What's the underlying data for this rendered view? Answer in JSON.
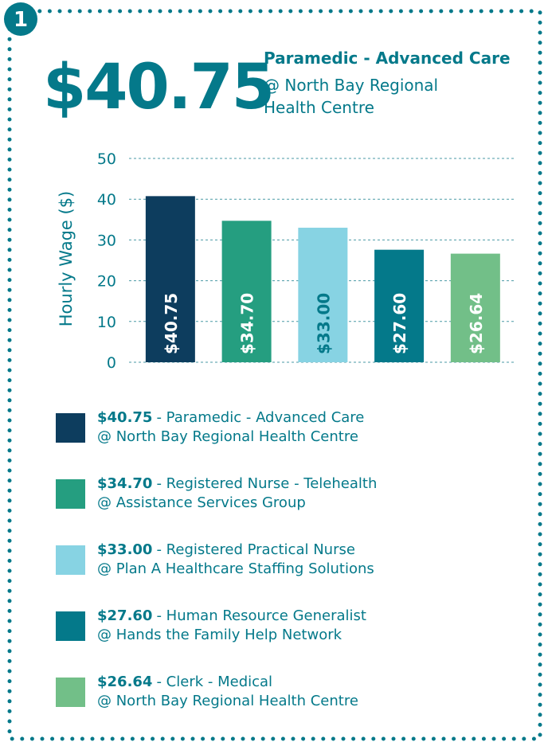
{
  "chart_data": {
    "type": "bar",
    "badge": "1",
    "headline": {
      "amount": "$40.75",
      "title": "Paramedic - Advanced Care",
      "subtitle": [
        "@ North Bay Regional",
        "Health Centre"
      ]
    },
    "ylabel": "Hourly Wage ($)",
    "values": [
      40.75,
      34.7,
      33.0,
      27.6,
      26.64
    ],
    "value_labels": [
      "$40.75",
      "$34.70",
      "$33.00",
      "$27.60",
      "$26.64"
    ],
    "colors": [
      "#0d3d5e",
      "#259e80",
      "#87d3e3",
      "#04798a",
      "#72bf88"
    ],
    "value_label_colors": [
      "#ffffff",
      "#ffffff",
      "#04798a",
      "#ffffff",
      "#ffffff"
    ],
    "ylim": [
      0,
      50
    ],
    "yticks": [
      0,
      10,
      20,
      30,
      40,
      50
    ],
    "grid": true,
    "legend": [
      {
        "amount": "$40.75",
        "title": "- Paramedic - Advanced Care",
        "employer": "@ North Bay Regional Health Centre"
      },
      {
        "amount": "$34.70",
        "title": "- Registered Nurse - Telehealth",
        "employer": "@ Assistance Services Group"
      },
      {
        "amount": "$33.00",
        "title": "- Registered Practical Nurse",
        "employer": "@ Plan A Healthcare Staffing Solutions"
      },
      {
        "amount": "$27.60",
        "title": "- Human Resource Generalist",
        "employer": "@ Hands the Family Help Network"
      },
      {
        "amount": "$26.64",
        "title": "- Clerk - Medical",
        "employer": "@ North Bay Regional Health Centre"
      }
    ]
  }
}
